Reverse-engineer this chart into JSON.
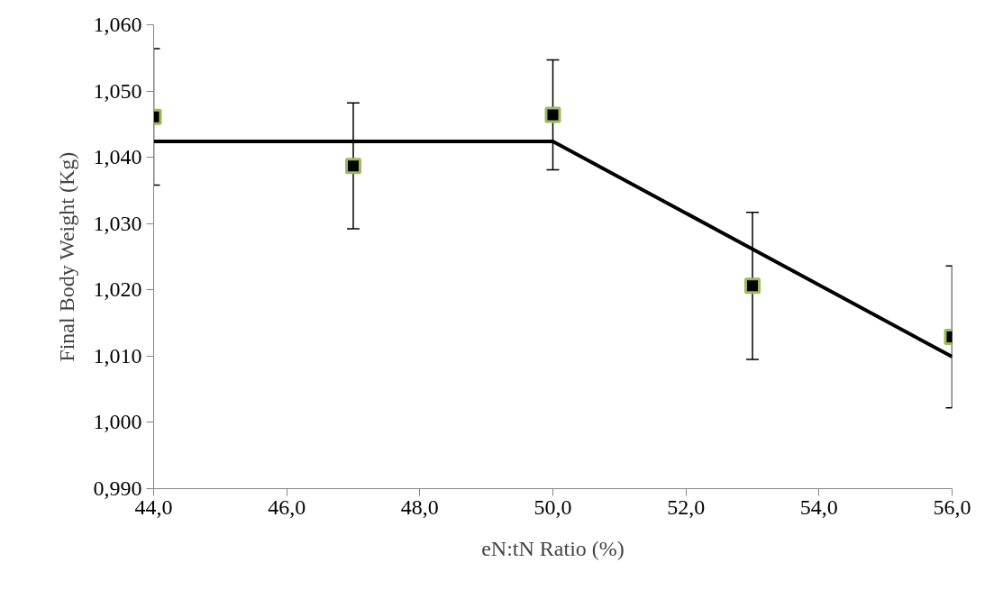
{
  "chart_data": {
    "type": "scatter",
    "xlabel": "eN:tN Ratio (%)",
    "ylabel": "Final Body Weight (Kg)",
    "x": [
      44,
      47,
      50,
      53,
      56
    ],
    "series": [
      {
        "color": "#000000",
        "marker": "square",
        "values": [
          1.0461,
          1.0387,
          1.0464,
          1.0206,
          1.0129
        ],
        "errors": [
          0.0103,
          0.0095,
          0.0083,
          0.0111,
          0.0107
        ]
      },
      {
        "type": "line",
        "color": "#000000",
        "marker": "none",
        "line_style": "solid",
        "x": [
          44,
          50,
          56
        ],
        "values": [
          1.0424,
          1.0424,
          1.0099
        ]
      }
    ],
    "xlim": [
      44,
      56
    ],
    "ylim": [
      0.99,
      1.06
    ],
    "xticks": [
      {
        "value": 44,
        "label": "44,0"
      },
      {
        "value": 46,
        "label": "46,0"
      },
      {
        "value": 48,
        "label": "48,0"
      },
      {
        "value": 50,
        "label": "50,0"
      },
      {
        "value": 52,
        "label": "52,0"
      },
      {
        "value": 54,
        "label": "54,0"
      },
      {
        "value": 56,
        "label": "56,0"
      }
    ],
    "yticks": [
      {
        "value": 0.99,
        "label": "0,990"
      },
      {
        "value": 1.0,
        "label": "1,000"
      },
      {
        "value": 1.01,
        "label": "1,010"
      },
      {
        "value": 1.02,
        "label": "1,020"
      },
      {
        "value": 1.03,
        "label": "1,030"
      },
      {
        "value": 1.04,
        "label": "1,040"
      },
      {
        "value": 1.05,
        "label": "1,050"
      },
      {
        "value": 1.06,
        "label": "1,060"
      }
    ],
    "grid": false
  }
}
